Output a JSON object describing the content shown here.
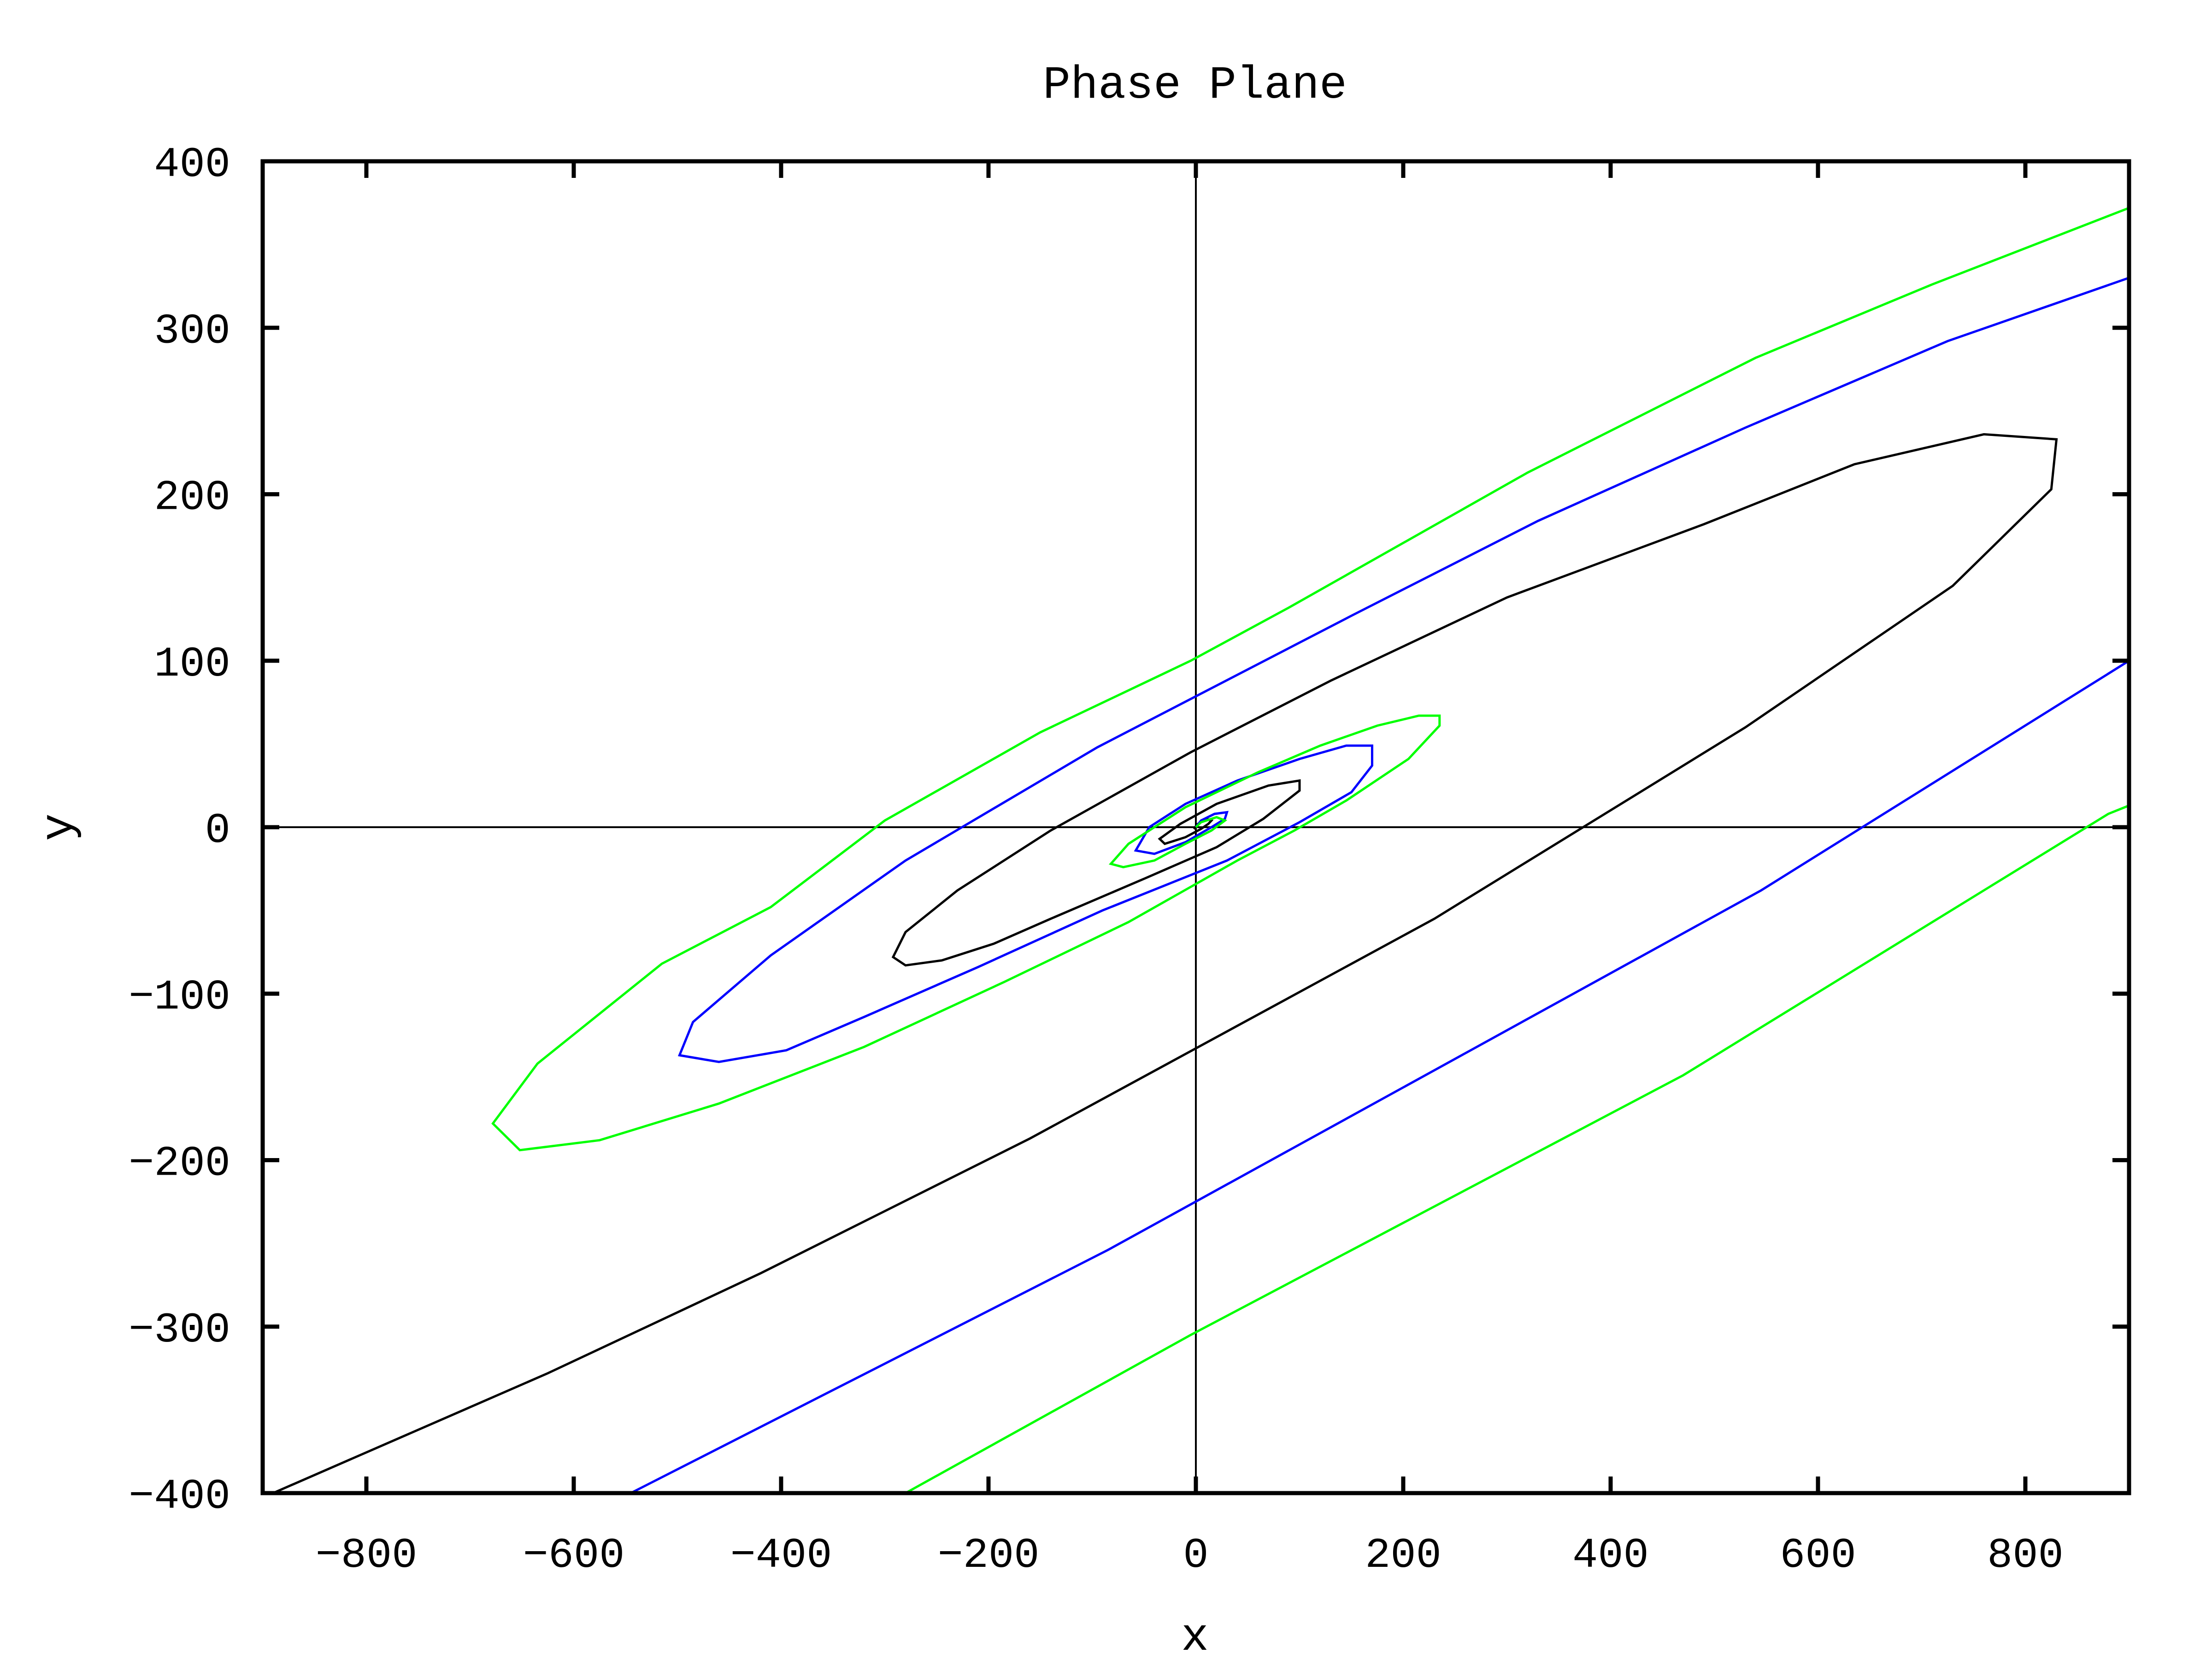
{
  "chart_data": {
    "type": "line",
    "title": "Phase Plane",
    "xlabel": "x",
    "ylabel": "y",
    "xlim": [
      -900,
      900
    ],
    "ylim": [
      -400,
      400
    ],
    "xticks": [
      -800,
      -600,
      -400,
      -200,
      0,
      200,
      400,
      600,
      800
    ],
    "yticks": [
      -400,
      -300,
      -200,
      -100,
      0,
      100,
      200,
      300,
      400
    ],
    "xtick_labels": [
      "−800",
      "−600",
      "−400",
      "−200",
      "0",
      "200",
      "400",
      "600",
      "800"
    ],
    "ytick_labels": [
      "−400",
      "−300",
      "−200",
      "−100",
      "0",
      "100",
      "200",
      "300",
      "400"
    ],
    "grid": false,
    "zero_axes": true,
    "legend": "none",
    "series": [
      {
        "color": "#000000",
        "points": [
          [
            -890,
            -400
          ],
          [
            -625,
            -328
          ],
          [
            -420,
            -268
          ],
          [
            -160,
            -187
          ],
          [
            230,
            -55
          ],
          [
            530,
            60
          ],
          [
            730,
            145
          ],
          [
            825,
            203
          ],
          [
            830,
            233
          ],
          [
            760,
            236
          ],
          [
            635,
            218
          ],
          [
            490,
            182
          ],
          [
            300,
            138
          ],
          [
            130,
            88
          ],
          [
            -5,
            45
          ],
          [
            -140,
            -2
          ],
          [
            -230,
            -38
          ],
          [
            -280,
            -63
          ],
          [
            -292,
            -78
          ],
          [
            -280,
            -83
          ],
          [
            -245,
            -80
          ],
          [
            -195,
            -70
          ],
          [
            -140,
            -55
          ],
          [
            -50,
            -31
          ],
          [
            20,
            -12
          ],
          [
            65,
            5
          ],
          [
            100,
            22
          ],
          [
            100,
            28
          ],
          [
            70,
            25
          ],
          [
            20,
            14
          ],
          [
            -15,
            2
          ],
          [
            -35,
            -7
          ],
          [
            -30,
            -10
          ],
          [
            -10,
            -6
          ],
          [
            5,
            -1
          ],
          [
            12,
            2
          ],
          [
            15,
            4
          ],
          [
            10,
            5
          ],
          [
            2,
            2
          ],
          [
            -2,
            -1
          ],
          [
            0,
            0
          ]
        ]
      },
      {
        "color": "#0000ff",
        "points": [
          [
            -545,
            -400
          ],
          [
            -85,
            -254
          ],
          [
            545,
            -38
          ],
          [
            900,
            100
          ]
        ]
      },
      {
        "color": "#0000ff",
        "points": [
          [
            900,
            330
          ],
          [
            725,
            292
          ],
          [
            530,
            240
          ],
          [
            330,
            184
          ],
          [
            150,
            127
          ],
          [
            -95,
            48
          ],
          [
            -280,
            -20
          ],
          [
            -410,
            -77
          ],
          [
            -485,
            -117
          ],
          [
            -498,
            -137
          ],
          [
            -460,
            -141
          ],
          [
            -395,
            -134
          ],
          [
            -320,
            -114
          ],
          [
            -210,
            -84
          ],
          [
            -90,
            -50
          ],
          [
            30,
            -20
          ],
          [
            100,
            3
          ],
          [
            150,
            21
          ],
          [
            170,
            37
          ],
          [
            170,
            49
          ],
          [
            145,
            49
          ],
          [
            100,
            41
          ],
          [
            40,
            28
          ],
          [
            -10,
            14
          ],
          [
            -45,
            0
          ],
          [
            -58,
            -14
          ],
          [
            -40,
            -16
          ],
          [
            -10,
            -9
          ],
          [
            15,
            0
          ],
          [
            28,
            5
          ],
          [
            30,
            9
          ],
          [
            18,
            8
          ],
          [
            5,
            4
          ],
          [
            0,
            0
          ]
        ]
      },
      {
        "color": "#00ff00",
        "points": [
          [
            -280,
            -400
          ],
          [
            -5,
            -305
          ],
          [
            470,
            -149
          ],
          [
            880,
            8
          ],
          [
            900,
            13
          ]
        ]
      },
      {
        "color": "#00ff00",
        "points": [
          [
            900,
            372
          ],
          [
            710,
            326
          ],
          [
            540,
            282
          ],
          [
            320,
            213
          ],
          [
            90,
            132
          ],
          [
            -5,
            100
          ],
          [
            -150,
            57
          ],
          [
            -300,
            4
          ],
          [
            -410,
            -48
          ],
          [
            -515,
            -82
          ],
          [
            -635,
            -142
          ],
          [
            -678,
            -178
          ],
          [
            -652,
            -194
          ],
          [
            -575,
            -188
          ],
          [
            -460,
            -166
          ],
          [
            -320,
            -132
          ],
          [
            -185,
            -93
          ],
          [
            -65,
            -57
          ],
          [
            40,
            -20
          ],
          [
            95,
            -2
          ],
          [
            145,
            16
          ],
          [
            205,
            41
          ],
          [
            235,
            61
          ],
          [
            235,
            67
          ],
          [
            215,
            67
          ],
          [
            175,
            61
          ],
          [
            120,
            49
          ],
          [
            60,
            33
          ],
          [
            -10,
            12
          ],
          [
            -65,
            -10
          ],
          [
            -82,
            -22
          ],
          [
            -70,
            -24
          ],
          [
            -40,
            -20
          ],
          [
            -10,
            -10
          ],
          [
            15,
            -2
          ],
          [
            28,
            4
          ],
          [
            20,
            6
          ],
          [
            5,
            3
          ],
          [
            0,
            0
          ]
        ]
      }
    ]
  }
}
